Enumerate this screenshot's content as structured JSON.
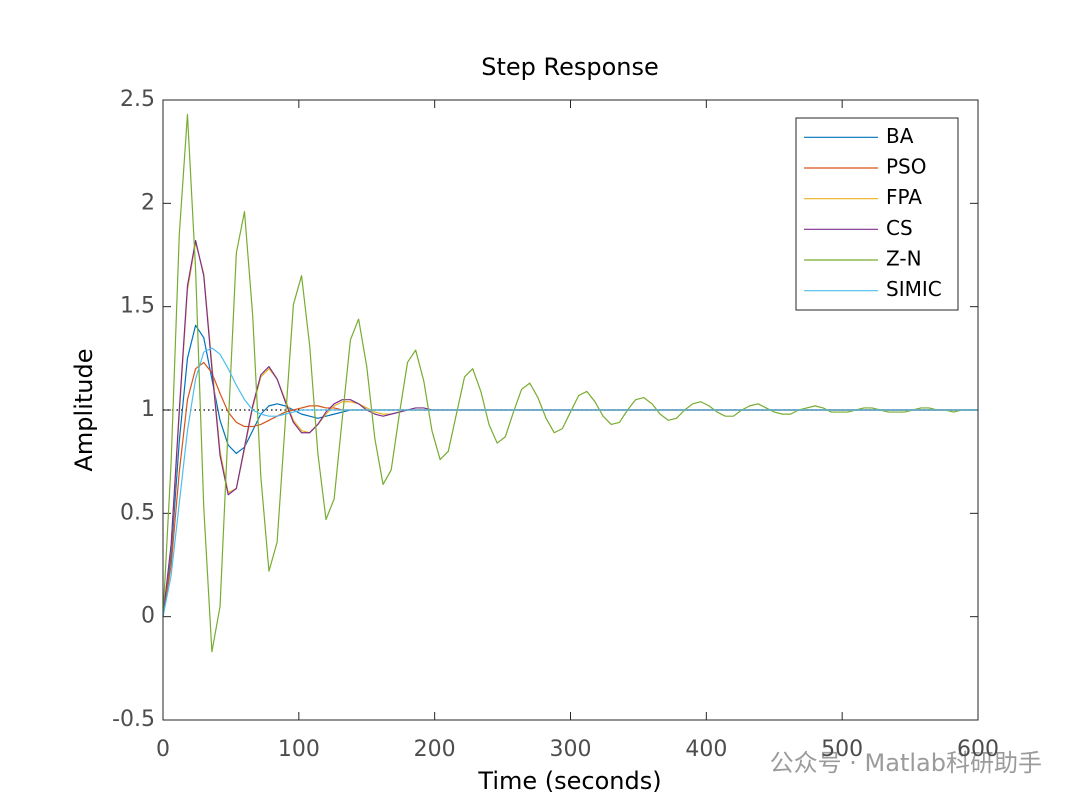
{
  "chart_data": {
    "type": "line",
    "title": "Step Response",
    "x_label": "Time (seconds)",
    "y_label": "Amplitude",
    "x": [
      0,
      6,
      12,
      18,
      24,
      30,
      36,
      42,
      48,
      54,
      60,
      66,
      72,
      78,
      84,
      90,
      96,
      102,
      108,
      114,
      120,
      126,
      132,
      138,
      144,
      150,
      156,
      162,
      168,
      174,
      180,
      186,
      192,
      198,
      204,
      210,
      216,
      222,
      228,
      234,
      240,
      246,
      252,
      258,
      264,
      270,
      276,
      282,
      288,
      294,
      300,
      306,
      312,
      318,
      324,
      330,
      336,
      342,
      348,
      354,
      360,
      366,
      372,
      378,
      384,
      390,
      396,
      402,
      408,
      414,
      420,
      426,
      432,
      438,
      444,
      450,
      456,
      462,
      468,
      474,
      480,
      486,
      492,
      498,
      504,
      510,
      516,
      522,
      528,
      534,
      540,
      546,
      552,
      558,
      564,
      570,
      576,
      582,
      588,
      594,
      600
    ],
    "series": [
      {
        "name": "BA",
        "color": "#0072BD",
        "values": [
          0,
          0.3,
          0.85,
          1.25,
          1.41,
          1.35,
          1.15,
          0.95,
          0.83,
          0.79,
          0.82,
          0.9,
          0.98,
          1.02,
          1.03,
          1.02,
          1,
          0.98,
          0.97,
          0.96,
          0.97,
          0.98,
          0.99,
          1,
          1,
          1,
          1,
          1,
          1,
          1,
          1,
          1,
          1,
          1,
          1,
          1,
          1,
          1,
          1,
          1,
          1,
          1,
          1,
          1,
          1,
          1,
          1,
          1,
          1,
          1,
          1,
          1,
          1,
          1,
          1,
          1,
          1,
          1,
          1,
          1,
          1,
          1,
          1,
          1,
          1,
          1,
          1,
          1,
          1,
          1,
          1,
          1,
          1,
          1,
          1,
          1,
          1,
          1,
          1,
          1,
          1,
          1,
          1,
          1,
          1,
          1,
          1,
          1,
          1,
          1,
          1,
          1,
          1,
          1,
          1,
          1,
          1,
          1,
          1,
          1,
          1
        ]
      },
      {
        "name": "PSO",
        "color": "#D95319",
        "values": [
          0,
          0.25,
          0.7,
          1.05,
          1.2,
          1.23,
          1.18,
          1.08,
          0.99,
          0.94,
          0.92,
          0.92,
          0.93,
          0.95,
          0.97,
          0.99,
          1,
          1.01,
          1.02,
          1.02,
          1.01,
          1.01,
          1,
          1,
          1,
          1,
          1,
          1,
          1,
          1,
          1,
          1,
          1,
          1,
          1,
          1,
          1,
          1,
          1,
          1,
          1,
          1,
          1,
          1,
          1,
          1,
          1,
          1,
          1,
          1,
          1,
          1,
          1,
          1,
          1,
          1,
          1,
          1,
          1,
          1,
          1,
          1,
          1,
          1,
          1,
          1,
          1,
          1,
          1,
          1,
          1,
          1,
          1,
          1,
          1,
          1,
          1,
          1,
          1,
          1,
          1,
          1,
          1,
          1,
          1,
          1,
          1,
          1,
          1,
          1,
          1,
          1,
          1,
          1,
          1,
          1,
          1,
          1,
          1,
          1,
          1
        ]
      },
      {
        "name": "FPA",
        "color": "#EDB120",
        "values": [
          0,
          0.34,
          0.98,
          1.58,
          1.81,
          1.66,
          1.22,
          0.8,
          0.6,
          0.62,
          0.81,
          1.01,
          1.16,
          1.2,
          1.15,
          1.05,
          0.95,
          0.9,
          0.89,
          0.93,
          0.98,
          1.02,
          1.04,
          1.04,
          1.03,
          1.01,
          0.99,
          0.98,
          0.98,
          0.99,
          1,
          1,
          1,
          1,
          1,
          1,
          1,
          1,
          1,
          1,
          1,
          1,
          1,
          1,
          1,
          1,
          1,
          1,
          1,
          1,
          1,
          1,
          1,
          1,
          1,
          1,
          1,
          1,
          1,
          1,
          1,
          1,
          1,
          1,
          1,
          1,
          1,
          1,
          1,
          1,
          1,
          1,
          1,
          1,
          1,
          1,
          1,
          1,
          1,
          1,
          1,
          1,
          1,
          1,
          1,
          1,
          1,
          1,
          1,
          1,
          1,
          1,
          1,
          1,
          1,
          1,
          1,
          1,
          1,
          1,
          1
        ]
      },
      {
        "name": "CS",
        "color": "#7E2F8E",
        "values": [
          0,
          0.35,
          1.0,
          1.6,
          1.82,
          1.65,
          1.2,
          0.78,
          0.59,
          0.62,
          0.82,
          1.02,
          1.17,
          1.21,
          1.15,
          1.04,
          0.94,
          0.89,
          0.89,
          0.93,
          0.99,
          1.03,
          1.05,
          1.05,
          1.03,
          1,
          0.98,
          0.97,
          0.98,
          0.99,
          1,
          1.01,
          1.01,
          1,
          1,
          1,
          1,
          1,
          1,
          1,
          1,
          1,
          1,
          1,
          1,
          1,
          1,
          1,
          1,
          1,
          1,
          1,
          1,
          1,
          1,
          1,
          1,
          1,
          1,
          1,
          1,
          1,
          1,
          1,
          1,
          1,
          1,
          1,
          1,
          1,
          1,
          1,
          1,
          1,
          1,
          1,
          1,
          1,
          1,
          1,
          1,
          1,
          1,
          1,
          1,
          1,
          1,
          1,
          1,
          1,
          1,
          1,
          1,
          1,
          1,
          1,
          1,
          1,
          1,
          1,
          1
        ]
      },
      {
        "name": "Z-N",
        "color": "#77AC30",
        "values": [
          0,
          0.75,
          1.85,
          2.43,
          1.68,
          0.53,
          -0.17,
          0.05,
          0.92,
          1.76,
          1.96,
          1.46,
          0.68,
          0.22,
          0.36,
          0.94,
          1.51,
          1.65,
          1.31,
          0.79,
          0.47,
          0.57,
          0.96,
          1.34,
          1.44,
          1.21,
          0.86,
          0.64,
          0.71,
          0.98,
          1.23,
          1.29,
          1.14,
          0.9,
          0.76,
          0.8,
          0.98,
          1.16,
          1.2,
          1.09,
          0.93,
          0.84,
          0.87,
          0.99,
          1.1,
          1.13,
          1.06,
          0.96,
          0.89,
          0.91,
          0.99,
          1.07,
          1.09,
          1.04,
          0.97,
          0.93,
          0.94,
          1,
          1.05,
          1.06,
          1.03,
          0.98,
          0.95,
          0.96,
          1,
          1.03,
          1.04,
          1.02,
          0.99,
          0.97,
          0.97,
          1,
          1.02,
          1.03,
          1.01,
          0.99,
          0.98,
          0.98,
          1,
          1.01,
          1.02,
          1.01,
          0.99,
          0.99,
          0.99,
          1,
          1.01,
          1.01,
          1,
          0.99,
          0.99,
          0.99,
          1,
          1.01,
          1.01,
          1,
          1,
          0.99,
          1,
          1,
          1
        ]
      },
      {
        "name": "SIMIC",
        "color": "#4DBEEE",
        "values": [
          0,
          0.2,
          0.55,
          0.9,
          1.15,
          1.28,
          1.3,
          1.27,
          1.2,
          1.12,
          1.05,
          1,
          0.98,
          0.97,
          0.97,
          0.98,
          0.99,
          1,
          1,
          1,
          1,
          1,
          1,
          1,
          1,
          1,
          1,
          1,
          1,
          1,
          1,
          1,
          1,
          1,
          1,
          1,
          1,
          1,
          1,
          1,
          1,
          1,
          1,
          1,
          1,
          1,
          1,
          1,
          1,
          1,
          1,
          1,
          1,
          1,
          1,
          1,
          1,
          1,
          1,
          1,
          1,
          1,
          1,
          1,
          1,
          1,
          1,
          1,
          1,
          1,
          1,
          1,
          1,
          1,
          1,
          1,
          1,
          1,
          1,
          1,
          1,
          1,
          1,
          1,
          1,
          1,
          1,
          1,
          1,
          1,
          1,
          1,
          1,
          1,
          1,
          1,
          1,
          1,
          1,
          1,
          1
        ]
      }
    ],
    "steady_state": 1,
    "xlim": [
      0,
      600
    ],
    "xticks": [
      0,
      100,
      200,
      300,
      400,
      500,
      600
    ],
    "ylim": [
      -0.5,
      2.5
    ],
    "yticks": [
      -0.5,
      0,
      0.5,
      1,
      1.5,
      2,
      2.5
    ],
    "legend": "northeast",
    "watermark": "公众号 · Matlab科研助手"
  }
}
